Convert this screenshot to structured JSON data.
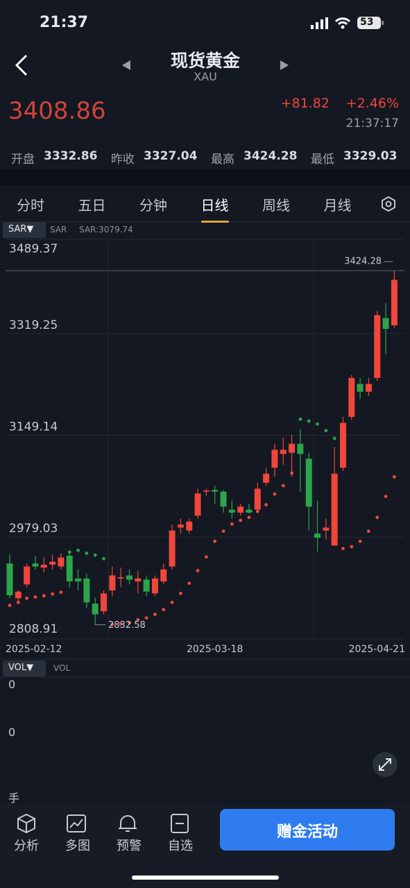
{
  "status_bar": {
    "time": "21:37",
    "battery": "53"
  },
  "header": {
    "title": "现货黄金",
    "subtitle": "XAU"
  },
  "quote": {
    "price": "3408.86",
    "change": "+81.82",
    "change_pct": "+2.46%",
    "time": "21:37:17"
  },
  "stats": [
    {
      "label": "开盘",
      "value": "3332.86"
    },
    {
      "label": "昨收",
      "value": "3327.04"
    },
    {
      "label": "最高",
      "value": "3424.28"
    },
    {
      "label": "最低",
      "value": "3329.03"
    }
  ],
  "tabs": [
    "分时",
    "五日",
    "分钟",
    "日线",
    "周线",
    "月线"
  ],
  "active_tab": 3,
  "indicator": {
    "button": "SAR▼",
    "name": "SAR",
    "value": "SAR:3079.74"
  },
  "chart_data": {
    "type": "candlestick",
    "categories": [
      "2025-02-12",
      null,
      null,
      null,
      null,
      null,
      null,
      null,
      null,
      null,
      null,
      null,
      null,
      null,
      null,
      null,
      null,
      null,
      null,
      null,
      null,
      null,
      null,
      null,
      "2025-03-18",
      null,
      null,
      null,
      null,
      null,
      null,
      null,
      null,
      null,
      null,
      null,
      null,
      null,
      null,
      null,
      null,
      null,
      null,
      null,
      null,
      "2025-04-21"
    ],
    "open": [
      2935,
      2877,
      2900,
      2935,
      2928,
      2933,
      2930,
      2948,
      2910,
      2910,
      2868,
      2855,
      2890,
      2910,
      2915,
      2905,
      2908,
      2885,
      2905,
      2930,
      2995,
      2990,
      3015,
      3055,
      3058,
      3055,
      3025,
      3020,
      3025,
      3025,
      3070,
      3095,
      3118,
      3120,
      3135,
      3110,
      2985,
      2990,
      2965,
      3095,
      3180,
      3235,
      3222,
      3245,
      3345,
      3332.86
    ],
    "high": [
      2950,
      2890,
      2935,
      2948,
      2945,
      2950,
      2952,
      2955,
      2925,
      2918,
      2878,
      2890,
      2930,
      2928,
      2925,
      2922,
      2915,
      2915,
      2935,
      3000,
      3010,
      3010,
      3060,
      3060,
      3065,
      3058,
      3040,
      3035,
      3035,
      3070,
      3095,
      3135,
      3145,
      3150,
      3160,
      3120,
      3040,
      3010,
      3130,
      3180,
      3250,
      3245,
      3245,
      3357,
      3370,
      3424.28
    ],
    "low": [
      2877,
      2870,
      2895,
      2925,
      2920,
      2925,
      2925,
      2895,
      2890,
      2860,
      2832.58,
      2850,
      2880,
      2895,
      2900,
      2885,
      2880,
      2880,
      2900,
      2925,
      2985,
      2985,
      3010,
      3048,
      3035,
      3020,
      3010,
      3015,
      3018,
      3020,
      3065,
      3080,
      3100,
      3080,
      3055,
      2990,
      2955,
      2975,
      2965,
      3090,
      3175,
      3210,
      3215,
      3240,
      3285,
      3329.03
    ],
    "close": [
      2882,
      2888,
      2930,
      2930,
      2933,
      2938,
      2945,
      2905,
      2905,
      2870,
      2850,
      2885,
      2915,
      2912,
      2908,
      2910,
      2888,
      2910,
      2925,
      2990,
      3000,
      3005,
      3052,
      3057,
      3055,
      3030,
      3020,
      3030,
      3020,
      3060,
      3085,
      3125,
      3125,
      3135,
      3118,
      3030,
      2978,
      2995,
      3085,
      3170,
      3245,
      3222,
      3235,
      3350,
      3327.04,
      3408.86
    ],
    "sar": [
      2865,
      2870,
      2877,
      2879,
      2881,
      2884,
      2887,
      2954,
      2957,
      2952,
      2949,
      2943,
      2833,
      2834,
      2836,
      2841,
      2844,
      2850,
      2858,
      2870,
      2885,
      2902,
      2923,
      2946,
      2972,
      2989,
      3001,
      3007,
      3012,
      3022,
      3033,
      3051,
      3065,
      3086,
      3176,
      3173,
      3168,
      3157,
      3144,
      2960,
      2963,
      2972,
      2989,
      3012,
      3047,
      3079.74
    ],
    "up_color": "#f0463c",
    "down_color": "#2ca54a",
    "ylim": [
      2808.91,
      3489.37
    ],
    "yticks": [
      2808.91,
      2979.03,
      3149.14,
      3319.25,
      3489.37
    ],
    "high_label": 3424.28,
    "low_label": 2832.58,
    "grid": true
  },
  "volume": {
    "button": "VOL▼",
    "name": "VOL",
    "axis_labels": [
      "0",
      "0"
    ],
    "unit": "手"
  },
  "nav": [
    "分析",
    "多图",
    "预警",
    "自选"
  ],
  "cta": "赠金活动"
}
